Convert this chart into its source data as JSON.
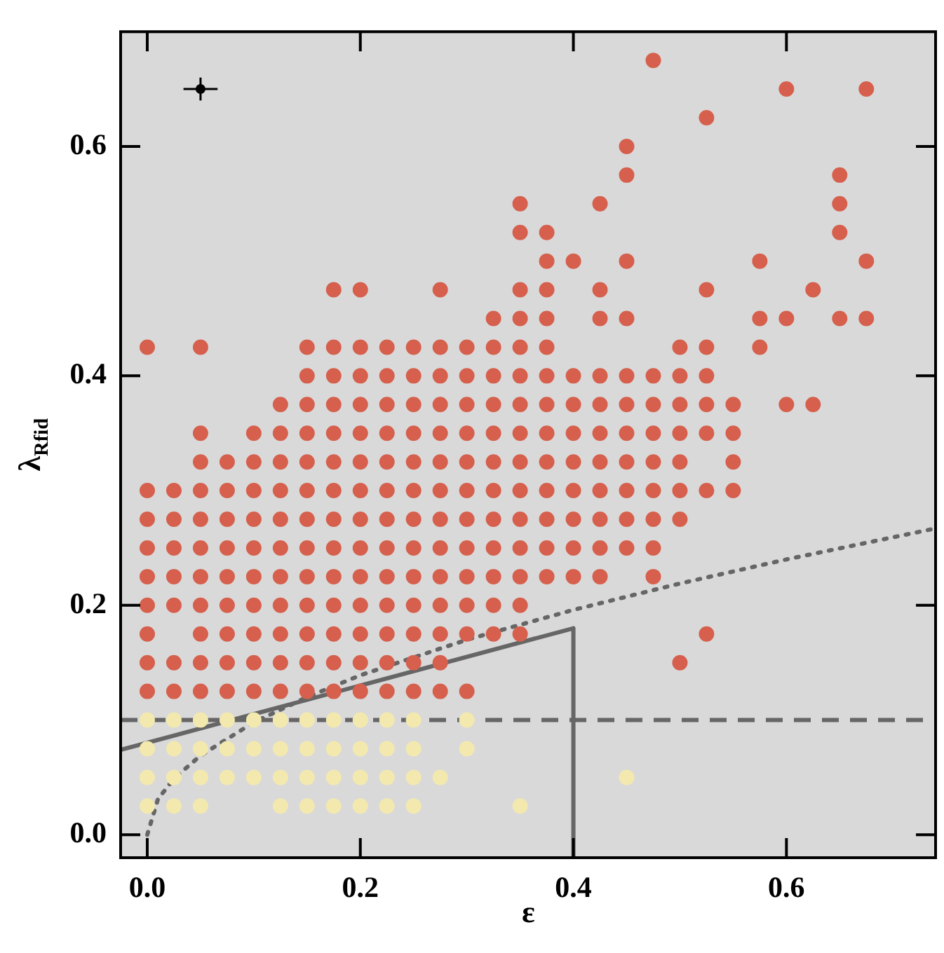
{
  "chart_data": {
    "type": "scatter",
    "xlabel": "ε",
    "ylabel": "λ$_{R}$$_{fid}$",
    "xlim": [
      -0.025,
      0.74
    ],
    "ylim": [
      -0.02,
      0.7
    ],
    "xticks": [
      {
        "value": 0,
        "label": "0.0"
      },
      {
        "value": 0.2,
        "label": "0.2"
      },
      {
        "value": 0.4,
        "label": "0.4"
      },
      {
        "value": 0.6,
        "label": "0.6"
      }
    ],
    "yticks": [
      {
        "value": 0,
        "label": "0.0"
      },
      {
        "value": 0.2,
        "label": "0.2"
      },
      {
        "value": 0.4,
        "label": "0.4"
      },
      {
        "value": 0.6,
        "label": "0.6"
      }
    ],
    "grid": false,
    "legend": false,
    "marker": "circle",
    "ref_lines": [
      {
        "axis": "y",
        "value": 0.1,
        "color": "#666666",
        "line_style": "dashed"
      }
    ],
    "series": [
      {
        "type": "scatter",
        "color": "#f3e9ae",
        "x": [
          0,
          0.025,
          0.05,
          0.125,
          0.15,
          0.175,
          0.2,
          0.225,
          0.25,
          0.35
        ],
        "values": [
          0.025,
          0.025,
          0.025,
          0.025,
          0.025,
          0.025,
          0.025,
          0.025,
          0.025,
          0.025
        ]
      },
      {
        "type": "scatter",
        "color": "#f3e9ae",
        "x": [
          0,
          0.025,
          0.05,
          0.075,
          0.1,
          0.125,
          0.15,
          0.175,
          0.2,
          0.225,
          0.25,
          0.275,
          0.45
        ],
        "values": [
          0.05,
          0.05,
          0.05,
          0.05,
          0.05,
          0.05,
          0.05,
          0.05,
          0.05,
          0.05,
          0.05,
          0.05,
          0.05
        ]
      },
      {
        "type": "scatter",
        "color": "#f3e9ae",
        "x": [
          0,
          0.025,
          0.05,
          0.075,
          0.1,
          0.125,
          0.15,
          0.175,
          0.2,
          0.225,
          0.25,
          0.3
        ],
        "values": [
          0.075,
          0.075,
          0.075,
          0.075,
          0.075,
          0.075,
          0.075,
          0.075,
          0.075,
          0.075,
          0.075,
          0.075
        ]
      },
      {
        "type": "scatter",
        "color": "#f3e9ae",
        "x": [
          0,
          0.025,
          0.05,
          0.075,
          0.1,
          0.125,
          0.15,
          0.175,
          0.2,
          0.225,
          0.25,
          0.3
        ],
        "values": [
          0.1,
          0.1,
          0.1,
          0.1,
          0.1,
          0.1,
          0.1,
          0.1,
          0.1,
          0.1,
          0.1,
          0.1
        ]
      },
      {
        "type": "scatter",
        "color": "#d6604d",
        "x": [
          0,
          0.025,
          0.05,
          0.075,
          0.1,
          0.125,
          0.15,
          0.175,
          0.2,
          0.225,
          0.25,
          0.275,
          0.3
        ],
        "values": [
          0.125,
          0.125,
          0.125,
          0.125,
          0.125,
          0.125,
          0.125,
          0.125,
          0.125,
          0.125,
          0.125,
          0.125,
          0.125
        ]
      },
      {
        "type": "scatter",
        "color": "#d6604d",
        "x": [
          0,
          0.025,
          0.05,
          0.075,
          0.1,
          0.125,
          0.15,
          0.175,
          0.2,
          0.225,
          0.25,
          0.275,
          0.5
        ],
        "values": [
          0.15,
          0.15,
          0.15,
          0.15,
          0.15,
          0.15,
          0.15,
          0.15,
          0.15,
          0.15,
          0.15,
          0.15,
          0.15
        ]
      },
      {
        "type": "scatter",
        "color": "#d6604d",
        "x": [
          0,
          0.05,
          0.075,
          0.1,
          0.125,
          0.15,
          0.175,
          0.2,
          0.225,
          0.25,
          0.275,
          0.3,
          0.325,
          0.35,
          0.525
        ],
        "values": [
          0.175,
          0.175,
          0.175,
          0.175,
          0.175,
          0.175,
          0.175,
          0.175,
          0.175,
          0.175,
          0.175,
          0.175,
          0.175,
          0.175,
          0.175
        ]
      },
      {
        "type": "scatter",
        "color": "#d6604d",
        "x": [
          0,
          0.025,
          0.05,
          0.075,
          0.1,
          0.125,
          0.15,
          0.175,
          0.2,
          0.225,
          0.25,
          0.275,
          0.3,
          0.325,
          0.35
        ],
        "values": [
          0.2,
          0.2,
          0.2,
          0.2,
          0.2,
          0.2,
          0.2,
          0.2,
          0.2,
          0.2,
          0.2,
          0.2,
          0.2,
          0.2,
          0.2
        ]
      },
      {
        "type": "scatter",
        "color": "#d6604d",
        "x": [
          0,
          0.025,
          0.05,
          0.075,
          0.1,
          0.125,
          0.15,
          0.175,
          0.2,
          0.225,
          0.25,
          0.275,
          0.3,
          0.325,
          0.35,
          0.375,
          0.4,
          0.425,
          0.475
        ],
        "values": [
          0.225,
          0.225,
          0.225,
          0.225,
          0.225,
          0.225,
          0.225,
          0.225,
          0.225,
          0.225,
          0.225,
          0.225,
          0.225,
          0.225,
          0.225,
          0.225,
          0.225,
          0.225,
          0.225
        ]
      },
      {
        "type": "scatter",
        "color": "#d6604d",
        "x": [
          0,
          0.025,
          0.05,
          0.075,
          0.1,
          0.125,
          0.15,
          0.175,
          0.2,
          0.225,
          0.25,
          0.275,
          0.3,
          0.325,
          0.35,
          0.375,
          0.4,
          0.425,
          0.45,
          0.475
        ],
        "values": [
          0.25,
          0.25,
          0.25,
          0.25,
          0.25,
          0.25,
          0.25,
          0.25,
          0.25,
          0.25,
          0.25,
          0.25,
          0.25,
          0.25,
          0.25,
          0.25,
          0.25,
          0.25,
          0.25,
          0.25
        ]
      },
      {
        "type": "scatter",
        "color": "#d6604d",
        "x": [
          0,
          0.025,
          0.05,
          0.075,
          0.1,
          0.125,
          0.15,
          0.175,
          0.2,
          0.225,
          0.25,
          0.275,
          0.3,
          0.325,
          0.35,
          0.375,
          0.4,
          0.425,
          0.45,
          0.475,
          0.5
        ],
        "values": [
          0.275,
          0.275,
          0.275,
          0.275,
          0.275,
          0.275,
          0.275,
          0.275,
          0.275,
          0.275,
          0.275,
          0.275,
          0.275,
          0.275,
          0.275,
          0.275,
          0.275,
          0.275,
          0.275,
          0.275,
          0.275
        ]
      },
      {
        "type": "scatter",
        "color": "#d6604d",
        "x": [
          0,
          0.025,
          0.05,
          0.075,
          0.1,
          0.125,
          0.15,
          0.175,
          0.2,
          0.225,
          0.25,
          0.275,
          0.3,
          0.325,
          0.35,
          0.375,
          0.4,
          0.425,
          0.45,
          0.475,
          0.5,
          0.525,
          0.55
        ],
        "values": [
          0.3,
          0.3,
          0.3,
          0.3,
          0.3,
          0.3,
          0.3,
          0.3,
          0.3,
          0.3,
          0.3,
          0.3,
          0.3,
          0.3,
          0.3,
          0.3,
          0.3,
          0.3,
          0.3,
          0.3,
          0.3,
          0.3,
          0.3
        ]
      },
      {
        "type": "scatter",
        "color": "#d6604d",
        "x": [
          0.05,
          0.075,
          0.1,
          0.125,
          0.15,
          0.175,
          0.2,
          0.225,
          0.25,
          0.275,
          0.3,
          0.325,
          0.35,
          0.375,
          0.4,
          0.425,
          0.45,
          0.475,
          0.5,
          0.55
        ],
        "values": [
          0.325,
          0.325,
          0.325,
          0.325,
          0.325,
          0.325,
          0.325,
          0.325,
          0.325,
          0.325,
          0.325,
          0.325,
          0.325,
          0.325,
          0.325,
          0.325,
          0.325,
          0.325,
          0.325,
          0.325
        ]
      },
      {
        "type": "scatter",
        "color": "#d6604d",
        "x": [
          0.05,
          0.1,
          0.125,
          0.15,
          0.175,
          0.2,
          0.225,
          0.25,
          0.275,
          0.3,
          0.325,
          0.35,
          0.375,
          0.4,
          0.425,
          0.45,
          0.475,
          0.5,
          0.525,
          0.55
        ],
        "values": [
          0.35,
          0.35,
          0.35,
          0.35,
          0.35,
          0.35,
          0.35,
          0.35,
          0.35,
          0.35,
          0.35,
          0.35,
          0.35,
          0.35,
          0.35,
          0.35,
          0.35,
          0.35,
          0.35,
          0.35
        ]
      },
      {
        "type": "scatter",
        "color": "#d6604d",
        "x": [
          0.125,
          0.15,
          0.175,
          0.2,
          0.225,
          0.25,
          0.275,
          0.3,
          0.325,
          0.35,
          0.375,
          0.4,
          0.425,
          0.45,
          0.475,
          0.5,
          0.525,
          0.55,
          0.6,
          0.625
        ],
        "values": [
          0.375,
          0.375,
          0.375,
          0.375,
          0.375,
          0.375,
          0.375,
          0.375,
          0.375,
          0.375,
          0.375,
          0.375,
          0.375,
          0.375,
          0.375,
          0.375,
          0.375,
          0.375,
          0.375,
          0.375
        ]
      },
      {
        "type": "scatter",
        "color": "#d6604d",
        "x": [
          0.15,
          0.175,
          0.2,
          0.225,
          0.25,
          0.275,
          0.3,
          0.325,
          0.35,
          0.375,
          0.4,
          0.425,
          0.45,
          0.475,
          0.5,
          0.525
        ],
        "values": [
          0.4,
          0.4,
          0.4,
          0.4,
          0.4,
          0.4,
          0.4,
          0.4,
          0.4,
          0.4,
          0.4,
          0.4,
          0.4,
          0.4,
          0.4,
          0.4
        ]
      },
      {
        "type": "scatter",
        "color": "#d6604d",
        "x": [
          0,
          0.05,
          0.15,
          0.175,
          0.2,
          0.225,
          0.25,
          0.275,
          0.3,
          0.325,
          0.35,
          0.375,
          0.5,
          0.525,
          0.575
        ],
        "values": [
          0.425,
          0.425,
          0.425,
          0.425,
          0.425,
          0.425,
          0.425,
          0.425,
          0.425,
          0.425,
          0.425,
          0.425,
          0.425,
          0.425,
          0.425
        ]
      },
      {
        "type": "scatter",
        "color": "#d6604d",
        "x": [
          0.325,
          0.35,
          0.375,
          0.425,
          0.45,
          0.575,
          0.6,
          0.65,
          0.675
        ],
        "values": [
          0.45,
          0.45,
          0.45,
          0.45,
          0.45,
          0.45,
          0.45,
          0.45,
          0.45
        ]
      },
      {
        "type": "scatter",
        "color": "#d6604d",
        "x": [
          0.175,
          0.2,
          0.275,
          0.35,
          0.375,
          0.425,
          0.525,
          0.625
        ],
        "values": [
          0.475,
          0.475,
          0.475,
          0.475,
          0.475,
          0.475,
          0.475,
          0.475
        ]
      },
      {
        "type": "scatter",
        "color": "#d6604d",
        "x": [
          0.375,
          0.4,
          0.45,
          0.575,
          0.675,
          0.35,
          0.375,
          0.65,
          0.35,
          0.425,
          0.65,
          0.45,
          0.65,
          0.45,
          0.525,
          0.6,
          0.675,
          0.475
        ],
        "values": [
          0.5,
          0.5,
          0.5,
          0.5,
          0.5,
          0.525,
          0.525,
          0.525,
          0.55,
          0.55,
          0.55,
          0.575,
          0.575,
          0.6,
          0.625,
          0.65,
          0.65,
          0.675
        ]
      },
      {
        "type": "line",
        "color": "#666666",
        "marker": "none",
        "line_style": "solid",
        "x": [
          -0.025,
          0.4,
          0.4
        ],
        "values": [
          0.074,
          0.18,
          -0.02
        ]
      },
      {
        "type": "line",
        "color": "#666666",
        "marker": "none",
        "line_style": "dotted",
        "x": [
          0,
          0.01,
          0.025,
          0.05,
          0.1,
          0.15,
          0.2,
          0.3,
          0.4,
          0.5,
          0.6,
          0.74
        ],
        "values": [
          0,
          0.031,
          0.049,
          0.069,
          0.098,
          0.12,
          0.139,
          0.17,
          0.196,
          0.219,
          0.24,
          0.267
        ]
      },
      {
        "color": "#000000",
        "x": [
          0.05
        ],
        "values": [
          0.65
        ],
        "errors": [
          0.01
        ],
        "xerrors": [
          0.016
        ]
      }
    ]
  }
}
